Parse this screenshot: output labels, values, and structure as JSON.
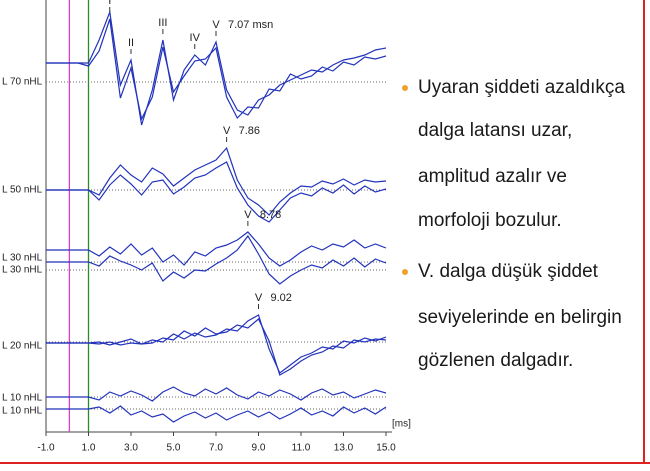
{
  "chart_data": {
    "type": "line",
    "x": [
      -1,
      -0.5,
      0,
      0.5,
      1,
      1.5,
      2,
      2.5,
      3,
      3.5,
      4,
      4.5,
      5,
      5.5,
      6,
      6.5,
      7,
      7.5,
      8,
      8.5,
      9,
      9.5,
      10,
      10.5,
      11,
      11.5,
      12,
      12.5,
      13,
      13.5,
      14,
      14.5,
      15
    ],
    "xlim": [
      -1,
      15
    ],
    "xticks": [
      {
        "value": -1,
        "label": "-1.0"
      },
      {
        "value": 1,
        "label": "1.0"
      },
      {
        "value": 3,
        "label": "3.0"
      },
      {
        "value": 5,
        "label": "5.0"
      },
      {
        "value": 7,
        "label": "7.0"
      },
      {
        "value": 9,
        "label": "9.0"
      },
      {
        "value": 11,
        "label": "11.0"
      },
      {
        "value": 13,
        "label": "13.0"
      },
      {
        "value": 15,
        "label": "15.0"
      }
    ],
    "x_unit": "[ms]",
    "markers": [
      {
        "value": 0.1,
        "color": "#e040c0"
      },
      {
        "value": 1,
        "color": "#2a8a2a"
      }
    ],
    "color": "#2233bb",
    "panels": [
      {
        "labels": [
          "L 70 nHL"
        ],
        "latency": "7.07 msn",
        "peaks": [
          {
            "label": "I",
            "x": 2
          },
          {
            "label": "II",
            "x": 3
          },
          {
            "label": "III",
            "x": 4.5
          },
          {
            "label": "IV",
            "x": 6
          },
          {
            "label": "V",
            "x": 7
          }
        ],
        "series": [
          {
            "values": [
              0,
              0,
              0,
              0,
              0,
              2.3,
              5.1,
              -2.2,
              0.3,
              -6.2,
              -2.7,
              2.3,
              -3.7,
              -0.7,
              0.8,
              -0.2,
              2.1,
              -2.7,
              -4.7,
              -5.2,
              -3.7,
              -3.2,
              -2.2,
              -1.7,
              -1.2,
              -0.7,
              -0.9,
              -0.2,
              0.3,
              0.5,
              0.8,
              1.3,
              1.5
            ]
          },
          {
            "values": [
              0,
              0,
              0,
              0,
              -0.3,
              1.2,
              4.4,
              -3.5,
              -0.5,
              -5.6,
              -3.4,
              1.6,
              -2.9,
              -1.3,
              0.2,
              0.4,
              1.5,
              -3.4,
              -5.5,
              -4.4,
              -4.5,
              -2.6,
              -2.8,
              -1.1,
              -1.6,
              -1.3,
              -0.4,
              -0.8,
              0.1,
              -0.2,
              0.6,
              0.4,
              0.7
            ]
          }
        ]
      },
      {
        "labels": [
          "L 50 nHL"
        ],
        "latency": "7.86",
        "peaks": [
          {
            "label": "V",
            "x": 7.5
          }
        ],
        "series": [
          {
            "values": [
              0,
              0,
              0,
              0,
              0,
              -0.5,
              1.2,
              2.5,
              1.5,
              0.8,
              2.2,
              1.6,
              0.4,
              1.2,
              2.0,
              2.5,
              3.0,
              4.2,
              1.0,
              -0.8,
              -1.5,
              -2.5,
              -1.2,
              -0.3,
              0.4,
              0.3,
              0.9,
              0.6,
              1.1,
              0.5,
              1.0,
              0.8,
              0.9
            ]
          },
          {
            "values": [
              0,
              0,
              0,
              0,
              0,
              -1.0,
              0.5,
              1.5,
              0.6,
              -0.5,
              0.8,
              1.0,
              -0.4,
              0.3,
              1.2,
              1.5,
              2.2,
              2.8,
              0.2,
              -1.5,
              -2.6,
              -3.2,
              -2.0,
              -0.8,
              -0.3,
              -0.6,
              0.2,
              -0.3,
              0.5,
              -0.4,
              0.4,
              -0.2,
              0.1
            ]
          }
        ]
      },
      {
        "labels": [
          "L 30 nHL",
          "L 30 nHL"
        ],
        "latency": "8.78",
        "peaks": [
          {
            "label": "V",
            "x": 8.5
          }
        ],
        "series": [
          {
            "values": [
              0,
              0,
              0,
              0,
              0,
              -0.6,
              0.3,
              -0.4,
              0.6,
              -0.5,
              0.2,
              -1.2,
              -0.5,
              -1.5,
              -0.2,
              -0.6,
              0.2,
              0.5,
              1.0,
              1.8,
              0.6,
              -0.8,
              -1.6,
              -1.0,
              -0.2,
              0.4,
              0.0,
              0.6,
              0.3,
              1.0,
              0.2,
              0.6,
              0.2
            ]
          },
          {
            "values": [
              0,
              0,
              0,
              0,
              0,
              -0.4,
              0.6,
              0.1,
              -0.3,
              -0.8,
              -0.1,
              -1.9,
              -1.0,
              -1.6,
              -0.8,
              -0.9,
              -0.2,
              0.4,
              1.2,
              2.6,
              0.8,
              -1.2,
              -2.2,
              -1.4,
              -0.8,
              -0.3,
              -0.6,
              0.2,
              -0.4,
              0.4,
              -0.5,
              0.3,
              -0.1
            ]
          }
        ]
      },
      {
        "labels": [
          "L 20 nHL"
        ],
        "latency": "9.02",
        "peaks": [
          {
            "label": "V",
            "x": 9
          }
        ],
        "series": [
          {
            "values": [
              0,
              0,
              0,
              0,
              0,
              -0.1,
              0.1,
              -0.2,
              0.0,
              -0.1,
              0.3,
              0.1,
              0.9,
              0.4,
              1.0,
              0.6,
              0.8,
              1.4,
              1.2,
              2.2,
              2.8,
              -0.6,
              -3.0,
              -2.2,
              -1.4,
              -1.0,
              -0.4,
              -0.6,
              0.2,
              0.0,
              0.5,
              0.2,
              0.6
            ]
          },
          {
            "values": [
              0,
              0,
              0,
              0,
              0,
              0.1,
              -0.2,
              0.1,
              0.4,
              -0.1,
              0.0,
              0.5,
              0.3,
              1.2,
              0.7,
              1.5,
              0.9,
              1.1,
              1.8,
              1.5,
              2.4,
              0.2,
              -3.2,
              -2.6,
              -1.8,
              -1.2,
              -0.9,
              -0.3,
              -0.5,
              0.3,
              0.1,
              0.4,
              0.3
            ]
          }
        ]
      },
      {
        "labels": [
          "L 10 nHL",
          "L 10 nHL"
        ],
        "series": [
          {
            "values": [
              0,
              0,
              0,
              0,
              0,
              -0.3,
              0.5,
              0.1,
              0.6,
              0.2,
              -0.4,
              0.5,
              1.0,
              0.4,
              0.1,
              0.8,
              0.3,
              0.9,
              0.2,
              -0.2,
              0.5,
              0.1,
              0.7,
              0.3,
              -0.3,
              0.4,
              0.8,
              0.2,
              0.5,
              -0.1,
              0.3,
              0.7,
              0.4
            ]
          },
          {
            "values": [
              0,
              0,
              0,
              0,
              0,
              0.2,
              -0.4,
              0.3,
              -0.6,
              -0.2,
              -0.8,
              -0.5,
              -1.3,
              -0.7,
              -0.3,
              -0.9,
              -0.4,
              -1.1,
              -0.6,
              -0.2,
              -0.8,
              -0.3,
              -1.0,
              -0.5,
              0.1,
              -0.6,
              -0.2,
              -0.7,
              0.2,
              -0.4,
              0.1,
              -0.5,
              0.2
            ]
          }
        ]
      }
    ]
  },
  "bullets": [
    {
      "lines": [
        "Uyaran şiddeti azaldıkça",
        "dalga latansı uzar,",
        "amplitud azalır ve",
        "morfoloji bozulur."
      ]
    },
    {
      "lines": [
        "V. dalga düşük şiddet",
        "seviyelerinde en belirgin",
        "gözlenen dalgadır."
      ]
    }
  ]
}
